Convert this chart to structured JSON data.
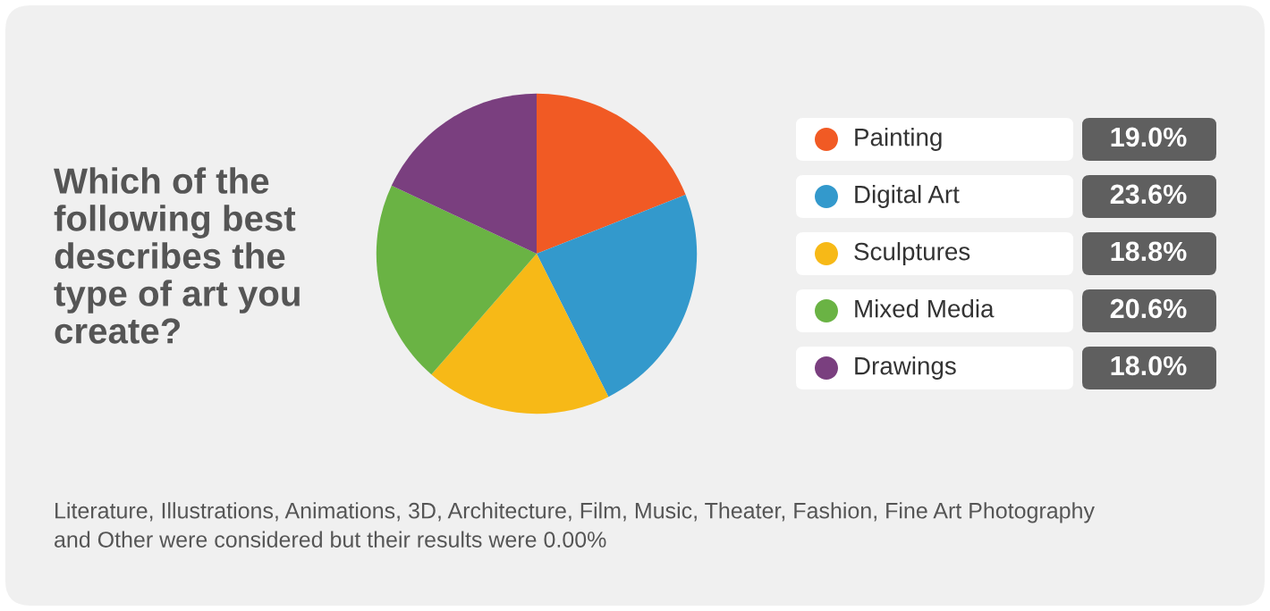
{
  "chart_data": {
    "type": "pie",
    "title": "Which of the\nfollowing best\ndescribes the\ntype of art you\ncreate?",
    "categories": [
      "Painting",
      "Digital Art",
      "Sculptures",
      "Mixed Media",
      "Drawings"
    ],
    "values": [
      19.0,
      23.6,
      18.8,
      20.6,
      18.0
    ],
    "colors": [
      "#f15a24",
      "#3399cc",
      "#f7b917",
      "#6ab344",
      "#7a3f7f"
    ],
    "value_labels": [
      "19.0%",
      "23.6%",
      "18.8%",
      "20.6%",
      "18.0%"
    ],
    "legend": "right",
    "annotations": [
      "Literature, Illustrations, Animations, 3D, Architecture, Film, Music, Theater, Fashion, Fine Art Photography\nand Other were considered but their results were 0.00%"
    ]
  }
}
